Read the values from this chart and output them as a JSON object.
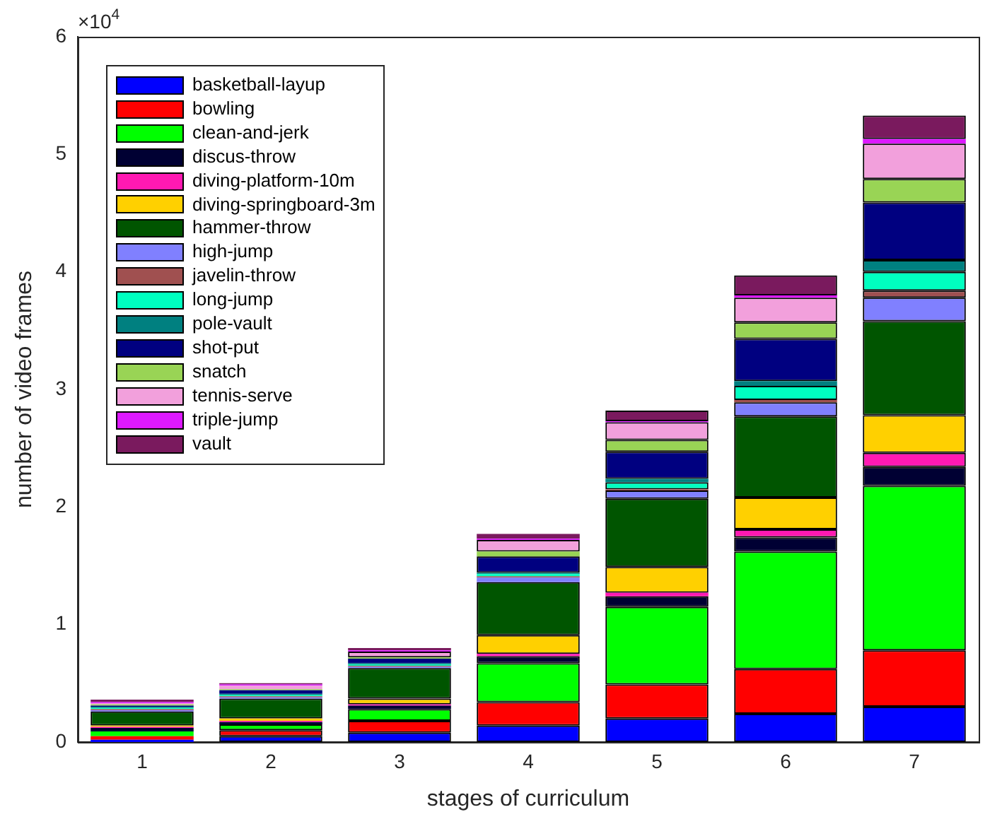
{
  "chart_data": {
    "type": "bar",
    "stacked": true,
    "xlabel": "stages of curriculum",
    "ylabel": "number of video frames",
    "annotations": [
      "×10$^{4}$"
    ],
    "categories": [
      "1",
      "2",
      "3",
      "4",
      "5",
      "6",
      "7"
    ],
    "ylim": [
      0,
      6
    ],
    "yticks": [
      0,
      1,
      2,
      3,
      4,
      5,
      6
    ],
    "grid": false,
    "legend": "top left",
    "series": [
      {
        "name": "basketball-layup",
        "color": "#0000ff",
        "values": [
          0.02,
          0.05,
          0.08,
          0.14,
          0.2,
          0.24,
          0.3
        ]
      },
      {
        "name": "bowling",
        "color": "#ff0000",
        "values": [
          0.03,
          0.05,
          0.1,
          0.2,
          0.29,
          0.38,
          0.48
        ]
      },
      {
        "name": "clean-and-jerk",
        "color": "#00ff00",
        "values": [
          0.04,
          0.05,
          0.1,
          0.33,
          0.66,
          1,
          1.4
        ]
      },
      {
        "name": "discus-throw",
        "color": "#000033",
        "values": [
          0.03,
          0.02,
          0.03,
          0.06,
          0.09,
          0.12,
          0.16
        ]
      },
      {
        "name": "diving-platform-10m",
        "color": "#ff19b2",
        "values": [
          0.01,
          0.01,
          0.01,
          0.02,
          0.03,
          0.07,
          0.12
        ]
      },
      {
        "name": "diving-springboard-3m",
        "color": "#ffd000",
        "values": [
          0.01,
          0.02,
          0.05,
          0.16,
          0.22,
          0.27,
          0.32
        ]
      },
      {
        "name": "hammer-throw",
        "color": "#005500",
        "values": [
          0.12,
          0.17,
          0.26,
          0.45,
          0.58,
          0.69,
          0.8
        ]
      },
      {
        "name": "high-jump",
        "color": "#8080ff",
        "values": [
          0.01,
          0.01,
          0.01,
          0.04,
          0.07,
          0.12,
          0.2
        ]
      },
      {
        "name": "javelin-throw",
        "color": "#a05050",
        "values": [
          0.01,
          0.01,
          0.01,
          0.01,
          0.01,
          0.02,
          0.06
        ]
      },
      {
        "name": "long-jump",
        "color": "#00ffc0",
        "values": [
          0.01,
          0.01,
          0.01,
          0.02,
          0.06,
          0.12,
          0.16
        ]
      },
      {
        "name": "pole-vault",
        "color": "#008080",
        "values": [
          0.01,
          0.01,
          0.01,
          0.01,
          0.03,
          0.04,
          0.1
        ]
      },
      {
        "name": "shot-put",
        "color": "#000080",
        "values": [
          0.01,
          0.03,
          0.04,
          0.14,
          0.23,
          0.36,
          0.49
        ]
      },
      {
        "name": "snatch",
        "color": "#99d455",
        "values": [
          0.01,
          0.01,
          0.01,
          0.04,
          0.1,
          0.14,
          0.2
        ]
      },
      {
        "name": "tennis-serve",
        "color": "#f2a0dc",
        "values": [
          0.01,
          0.03,
          0.05,
          0.1,
          0.15,
          0.21,
          0.3
        ]
      },
      {
        "name": "triple-jump",
        "color": "#dd19ff",
        "values": [
          0.01,
          0.01,
          0.01,
          0.01,
          0.01,
          0.02,
          0.04
        ]
      },
      {
        "name": "vault",
        "color": "#7a1a5e",
        "values": [
          0.02,
          0.01,
          0.02,
          0.04,
          0.09,
          0.17,
          0.2
        ]
      }
    ]
  }
}
